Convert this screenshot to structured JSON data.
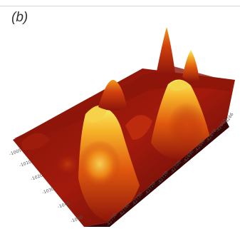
{
  "panel_label": "(b)",
  "figure": {
    "y_ticks": [
      "-1005",
      "-1010",
      "-1020",
      "-1030",
      "-1045",
      "-1050"
    ],
    "x_ticks": [
      "-42750",
      "-42740",
      "-42730",
      "-42720",
      "-42710",
      "-42700",
      "-42690",
      "-42680",
      "-42670",
      "-42660",
      "-4266"
    ]
  },
  "colors": {
    "surface_dark": "#5a0a0a",
    "surface_mid": "#b8230e",
    "surface_hot": "#f07a10",
    "surface_peak": "#f6e25a",
    "rule": "#d4d4d4"
  }
}
